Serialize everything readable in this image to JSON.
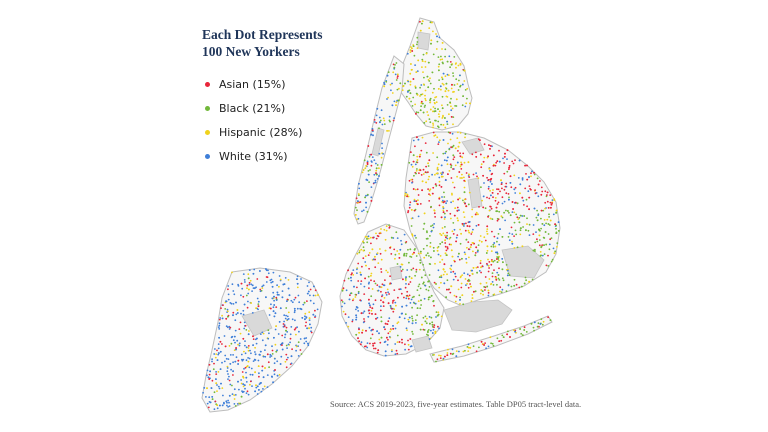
{
  "legend": {
    "title_line1": "Each Dot Represents",
    "title_line2": "100 New Yorkers",
    "items": [
      {
        "label": "Asian (15%)",
        "color": "#e8263a"
      },
      {
        "label": "Black (21%)",
        "color": "#72b83a"
      },
      {
        "label": "Hispanic (28%)",
        "color": "#f0d21c"
      },
      {
        "label": "White (31%)",
        "color": "#3f7fd8"
      }
    ]
  },
  "source": "Source: ACS 2019-2023, five-year estimates. Table DP05 tract-level data.",
  "colors": {
    "land_outline": "#c8c8c8",
    "water_parks": "#dcdcdc"
  }
}
